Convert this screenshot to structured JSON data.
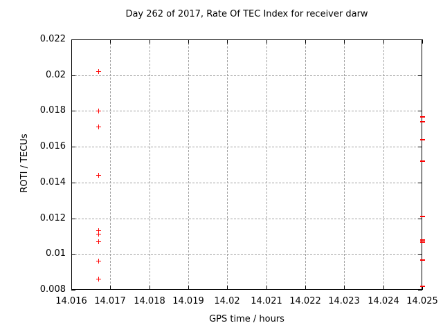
{
  "figure": {
    "background_color": "#ffffff",
    "border_color": "#000000",
    "text_color": "#000000"
  },
  "chart_data": {
    "type": "scatter",
    "title": "Day 262 of 2017, Rate Of TEC Index for receiver darw",
    "xlabel": "GPS time / hours",
    "ylabel": "ROTI / TECUs",
    "xlim": [
      14.016,
      14.025
    ],
    "ylim": [
      0.008,
      0.022
    ],
    "xticks": [
      14.016,
      14.017,
      14.018,
      14.019,
      14.02,
      14.021,
      14.022,
      14.023,
      14.024,
      14.025
    ],
    "xtick_labels": [
      "14.016",
      "14.017",
      "14.018",
      "14.019",
      "14.02",
      "14.021",
      "14.022",
      "14.023",
      "14.024",
      "14.025"
    ],
    "yticks": [
      0.008,
      0.01,
      0.012,
      0.014,
      0.016,
      0.018,
      0.02,
      0.022
    ],
    "ytick_labels": [
      "0.008",
      "0.01",
      "0.012",
      "0.014",
      "0.016",
      "0.018",
      "0.02",
      "0.022"
    ],
    "grid": true,
    "grid_style": "dashed",
    "grid_color": "#a0a0a0",
    "marker": "plus",
    "marker_color": "#ff0000",
    "legend": "none",
    "series": [
      {
        "name": "ROTI",
        "points": [
          {
            "x": 14.0167,
            "y": 0.0202
          },
          {
            "x": 14.0167,
            "y": 0.018
          },
          {
            "x": 14.0167,
            "y": 0.0171
          },
          {
            "x": 14.0167,
            "y": 0.0144
          },
          {
            "x": 14.0167,
            "y": 0.0113
          },
          {
            "x": 14.0167,
            "y": 0.0111
          },
          {
            "x": 14.0167,
            "y": 0.0107
          },
          {
            "x": 14.0167,
            "y": 0.0096
          },
          {
            "x": 14.0167,
            "y": 0.0086
          },
          {
            "x": 14.025,
            "y": 0.0177
          },
          {
            "x": 14.025,
            "y": 0.0174
          },
          {
            "x": 14.025,
            "y": 0.0164
          },
          {
            "x": 14.025,
            "y": 0.0152
          },
          {
            "x": 14.025,
            "y": 0.0121
          },
          {
            "x": 14.025,
            "y": 0.0108
          },
          {
            "x": 14.025,
            "y": 0.0107
          },
          {
            "x": 14.025,
            "y": 0.0097
          },
          {
            "x": 14.025,
            "y": 0.0082
          }
        ]
      }
    ]
  }
}
